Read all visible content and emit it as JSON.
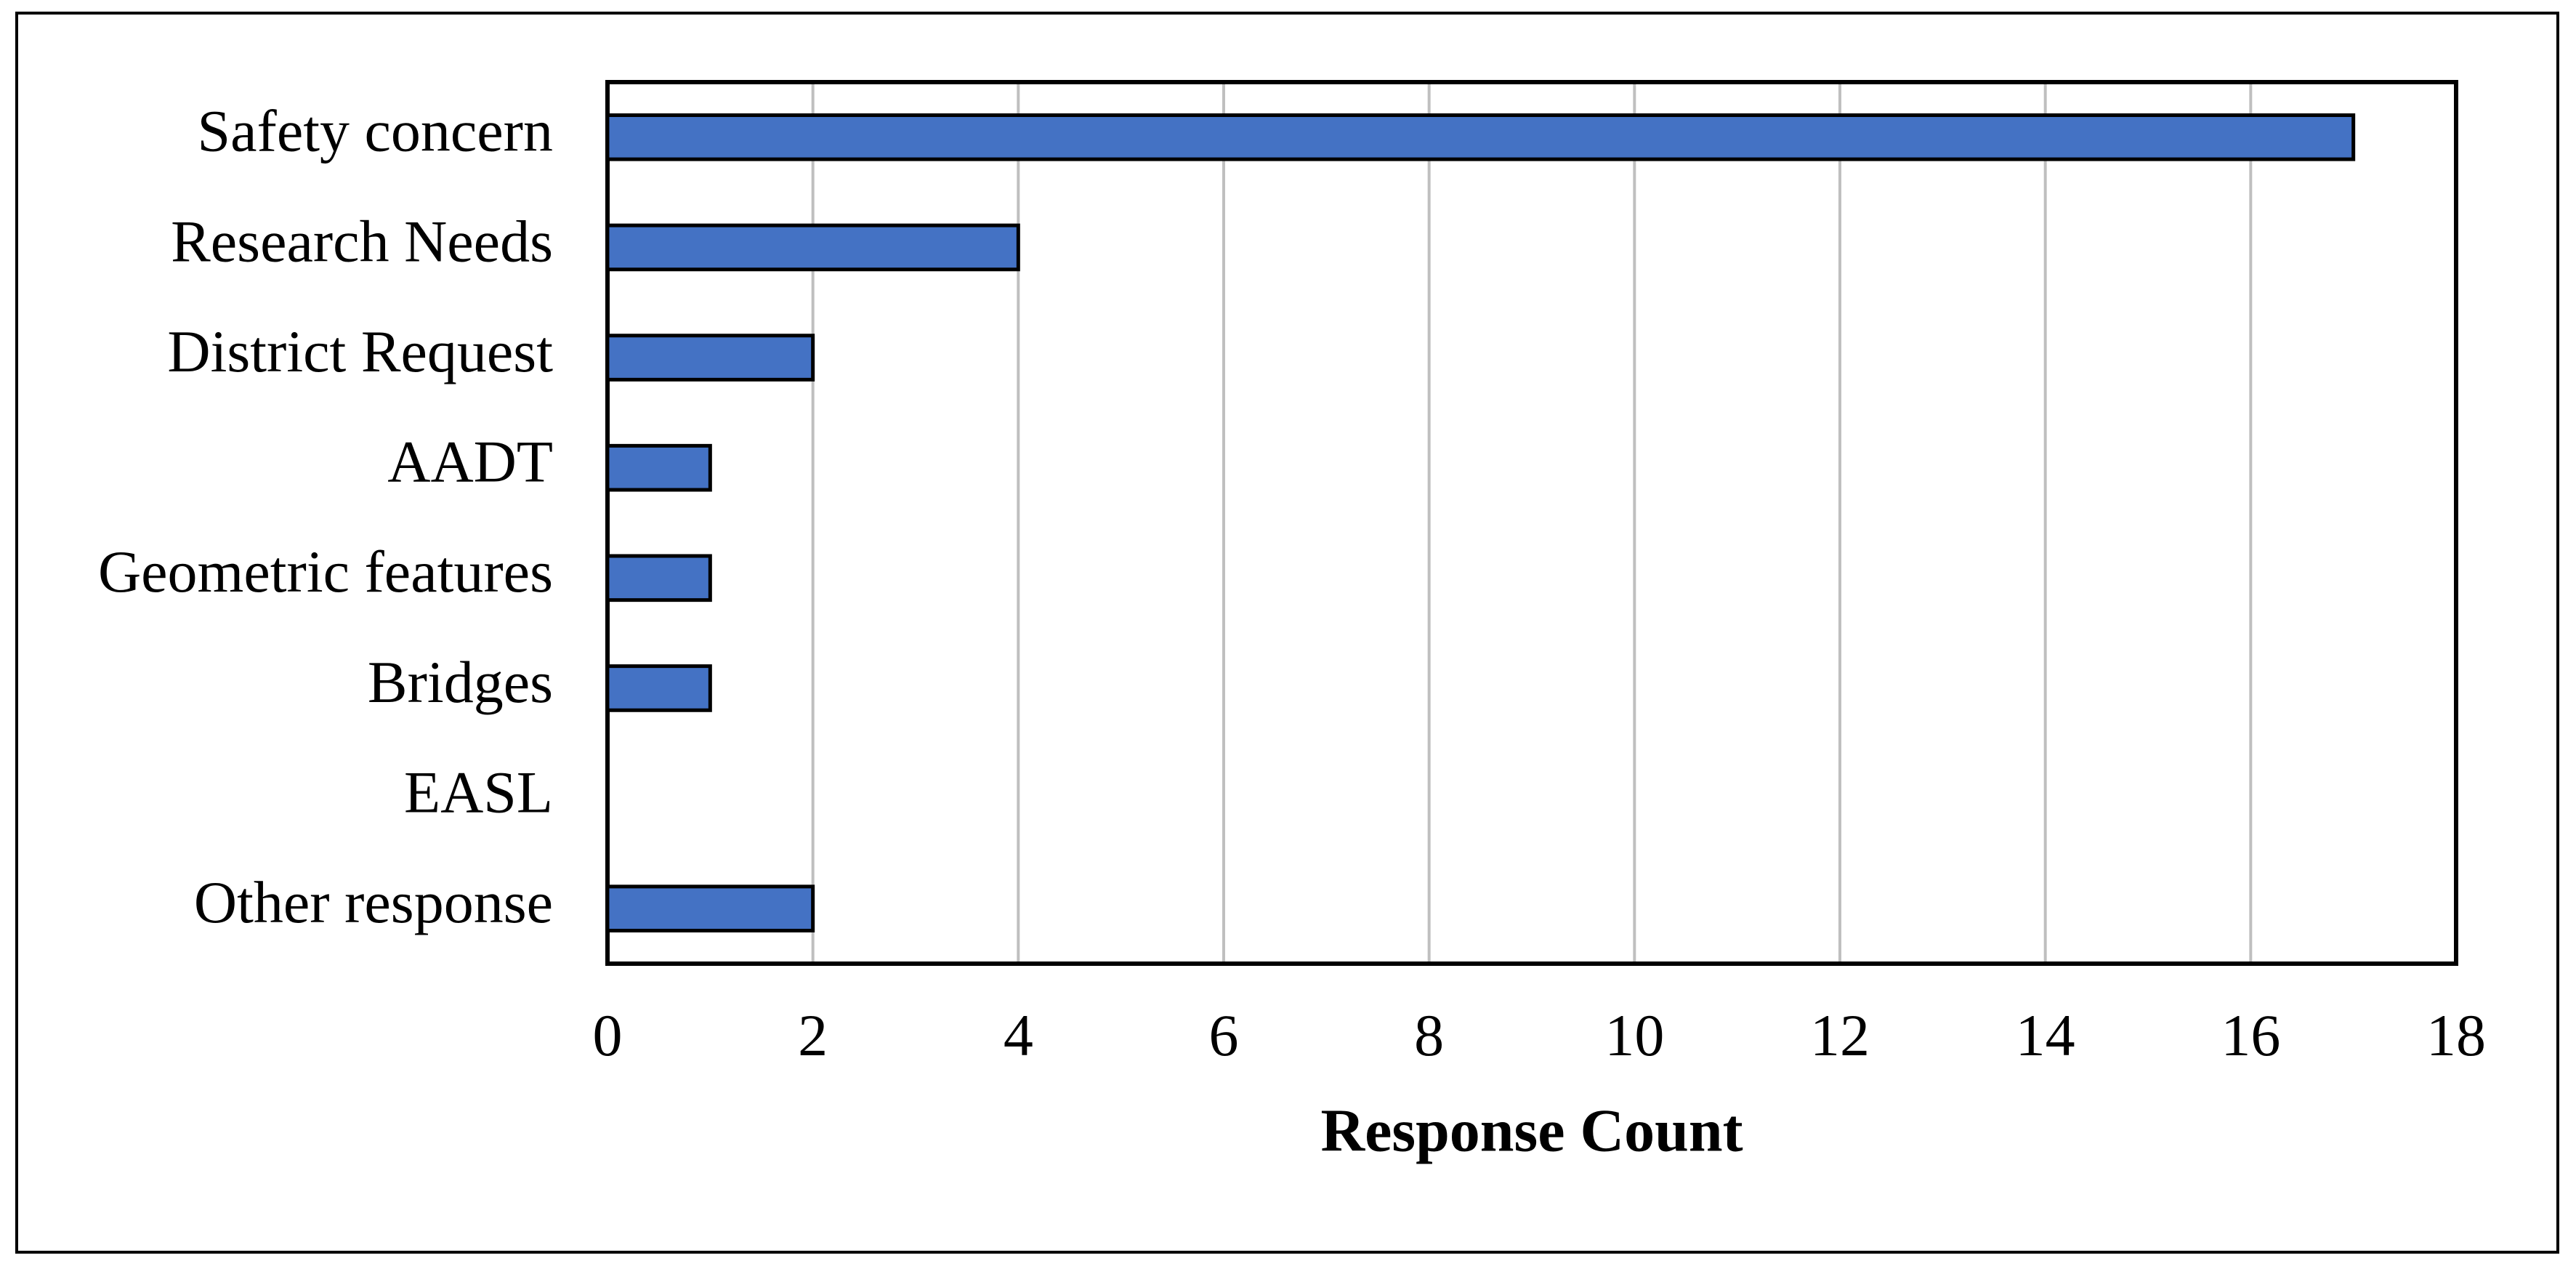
{
  "chart_data": {
    "type": "barh",
    "categories": [
      "Safety concern",
      "Research Needs",
      "District Request",
      "AADT",
      "Geometric features",
      "Bridges",
      "EASL",
      "Other response"
    ],
    "values": [
      17,
      4,
      2,
      1,
      1,
      1,
      0,
      2
    ],
    "color": "#4472c4",
    "xlabel": "Response Count",
    "xlim": [
      0,
      18
    ],
    "xticks": [
      0,
      2,
      4,
      6,
      8,
      10,
      12,
      14,
      16,
      18
    ],
    "grid": true
  }
}
